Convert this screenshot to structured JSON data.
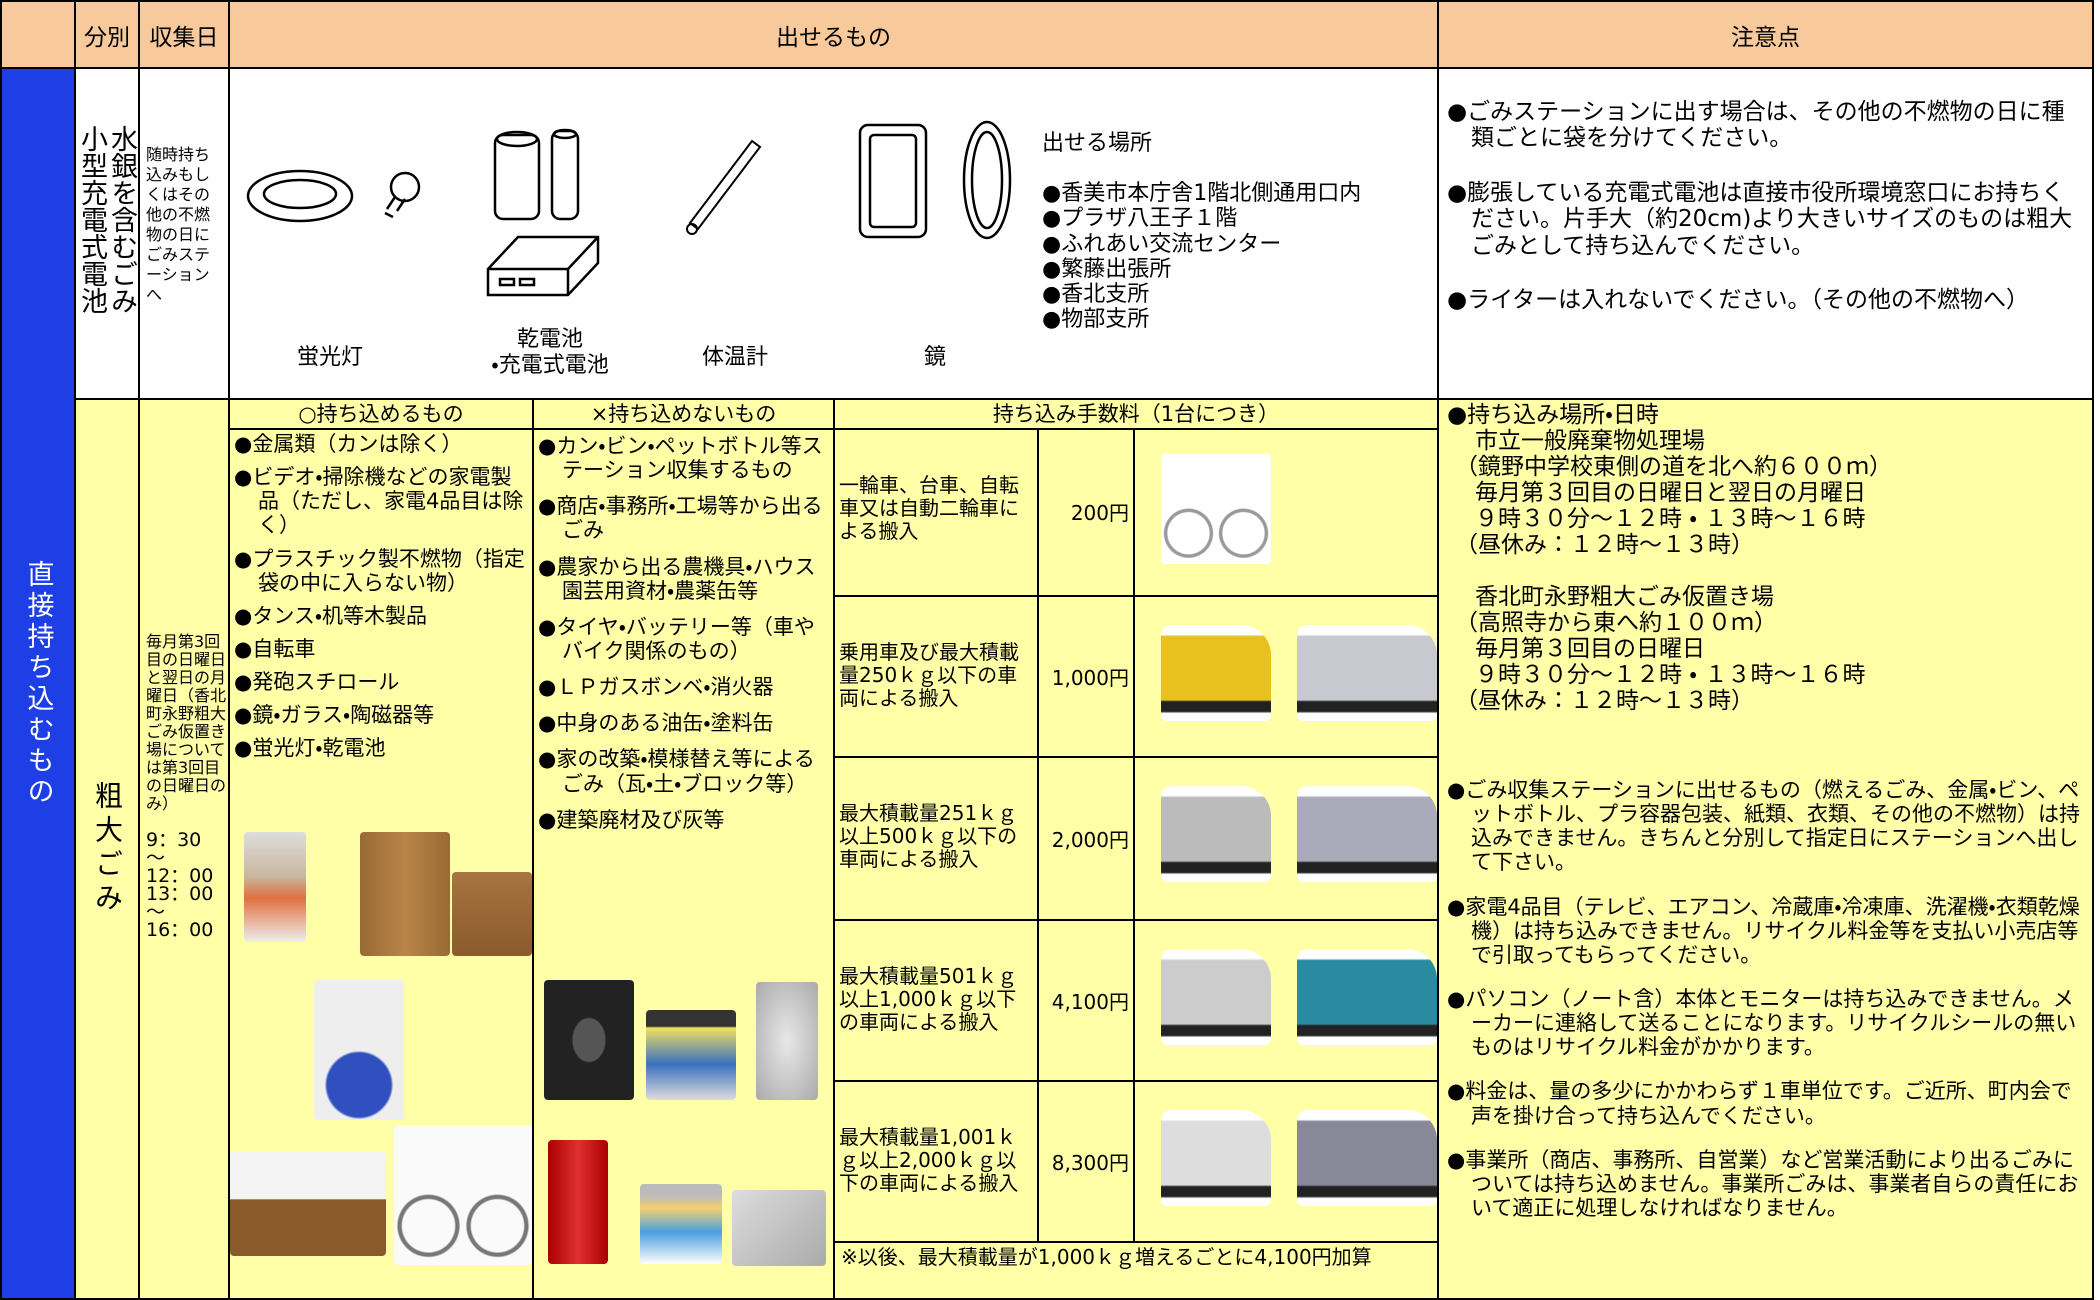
{
  "header": {
    "category": "分別",
    "date": "収集日",
    "items": "出せるもの",
    "notes": "注意点"
  },
  "side_label": "直接持ち込むもの",
  "battery": {
    "category": [
      "水銀を含むごみ",
      "小型充電式電池"
    ],
    "collection": "随時持ち込みもしくはその他の不燃物の日にごみステーションへ",
    "items": [
      "蛍光灯",
      "乾電池\n・充電式電池",
      "体温計",
      "鏡"
    ],
    "places": {
      "title": "出せる場所",
      "list": [
        "●香美市本庁舎1階北側通用口内",
        "●プラザ八王子１階",
        "●ふれあい交流センター",
        "●繁藤出張所",
        "●香北支所",
        "●物部支所"
      ]
    },
    "notes": [
      "●ごみステーションに出す場合は、その他の不燃物の日に種類ごとに袋を分けてください。",
      "●膨張している充電式電池は直接市役所環境窓口にお持ちください。片手大（約20cm)より大きいサイズのものは粗大ごみとして持ち込んでください。",
      "●ライターは入れないでください。（その他の不燃物へ）"
    ]
  },
  "bulky": {
    "category": "粗大ごみ",
    "schedule": "毎月第3回目の日曜日と翌日の月曜日（香北町永野粗大ごみ仮置き場については第3回目の日曜日のみ）",
    "times": [
      "9：30",
      "～",
      "12：00",
      "13：00",
      "～",
      "16：00"
    ],
    "allowed": {
      "title": "○持ち込めるもの",
      "items": [
        "●金属類（カンは除く）",
        "●ビデオ・掃除機などの家電製品（ただし、家電4品目は除く）",
        "●プラスチック製不燃物（指定袋の中に入らない物）",
        "●タンス・机等木製品",
        "●自転車",
        "●発砲スチロール",
        "●鏡・ガラス・陶磁器等",
        "●蛍光灯・乾電池"
      ]
    },
    "not_allowed": {
      "title": "×持ち込めないもの",
      "items": [
        "●カン・ビン・ペットボトル等ステーション収集するもの",
        "●商店・事務所・工場等から出るごみ",
        "●農家から出る農機具・ハウス園芸用資材・農薬缶等",
        "●タイヤ・バッテリー等（車やバイク関係のもの）",
        "●ＬＰガスボンベ・消火器",
        "●中身のある油缶・塗料缶",
        "●家の改築・模様替え等によるごみ（瓦・土・ブロック等）",
        "●建築廃材及び灰等"
      ]
    },
    "fees": {
      "title": "持ち込み手数料（1台につき）",
      "rows": [
        {
          "vehicle": "一輪車、台車、自転車又は自動二輪車による搬入",
          "fee": "200円"
        },
        {
          "vehicle": "乗用車及び最大積載量250ｋｇ以下の車両による搬入",
          "fee": "1,000円"
        },
        {
          "vehicle": "最大積載量251ｋｇ以上500ｋｇ以下の車両による搬入",
          "fee": "2,000円"
        },
        {
          "vehicle": "最大積載量501ｋｇ以上1,000ｋｇ以下の車両による搬入",
          "fee": "4,100円"
        },
        {
          "vehicle": "最大積載量1,001ｋｇ以上2,000ｋｇ以下の車両による搬入",
          "fee": "8,300円"
        }
      ],
      "note": "※以後、最大積載量が1,000ｋｇ増えるごとに4,100円加算"
    },
    "site_info": [
      "●持ち込み場所・日時",
      "市立一般廃棄物処理場",
      "（鏡野中学校東側の道を北へ約６００ｍ）",
      "毎月第３回目の日曜日と翌日の月曜日",
      "９時３０分～１２時 ・ １３時～１６時",
      "（昼休み：１２時～１３時）",
      "香北町永野粗大ごみ仮置き場",
      "（高照寺から東へ約１００ｍ）",
      "毎月第３回目の日曜日",
      "９時３０分～１２時 ・ １３時～１６時",
      "（昼休み：１２時～１３時）"
    ],
    "notes": [
      "●ごみ収集ステーションに出せるもの（燃えるごみ、金属・ビン、ペットボトル、プラ容器包装、紙類、衣類、その他の不燃物）は持込みできません。きちんと分別して指定日にステーションへ出して下さい。",
      "●家電4品目（テレビ、エアコン、冷蔵庫・冷凍庫、洗濯機・衣類乾燥機）は持ち込みできません。リサイクル料金等を支払い小売店等で引取ってもらってください。",
      "●パソコン（ノート含）本体とモニターは持ち込みできません。メーカーに連絡して送ることになります。リサイクルシールの無いものはリサイクル料金がかかります。",
      "●料金は、量の多少にかかわらず１車単位です。ご近所、町内会で声を掛け合って持ち込んでください。",
      "●事業所（商店、事務所、自営業）など営業活動により出るごみについては持ち込めません。事業所ごみは、事業者自らの責任において適正に処理しなければなりません。"
    ]
  }
}
